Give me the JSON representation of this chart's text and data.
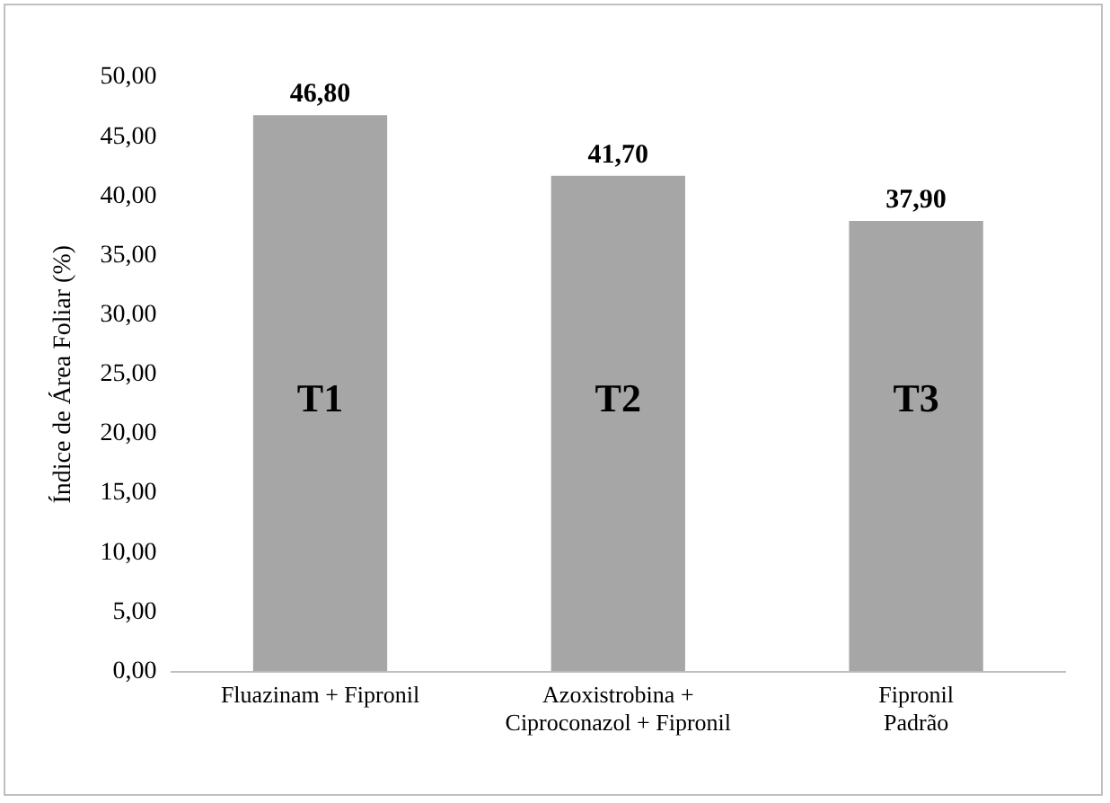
{
  "chart_data": {
    "type": "bar",
    "ylabel": "Índice de Área Foliar (%)",
    "categories": [
      "Fluazinam + Fipronil",
      "Azoxistrobina +\nCiproconazol + Fipronil",
      "Fipronil\nPadrão"
    ],
    "values": [
      46.8,
      41.7,
      37.9
    ],
    "color": "#a6a6a6",
    "value_labels": [
      "46,80",
      "41,70",
      "37,90"
    ],
    "ylim": [
      0,
      50
    ],
    "yticks": [
      {
        "value": 0,
        "label": "0,00"
      },
      {
        "value": 5,
        "label": "5,00"
      },
      {
        "value": 10,
        "label": "10,00"
      },
      {
        "value": 15,
        "label": "15,00"
      },
      {
        "value": 20,
        "label": "20,00"
      },
      {
        "value": 25,
        "label": "25,00"
      },
      {
        "value": 30,
        "label": "30,00"
      },
      {
        "value": 35,
        "label": "35,00"
      },
      {
        "value": 40,
        "label": "40,00"
      },
      {
        "value": 45,
        "label": "45,00"
      },
      {
        "value": 50,
        "label": "50,00"
      }
    ],
    "annotations": [
      "T1",
      "T2",
      "T3"
    ],
    "grid": false,
    "legend": false
  }
}
